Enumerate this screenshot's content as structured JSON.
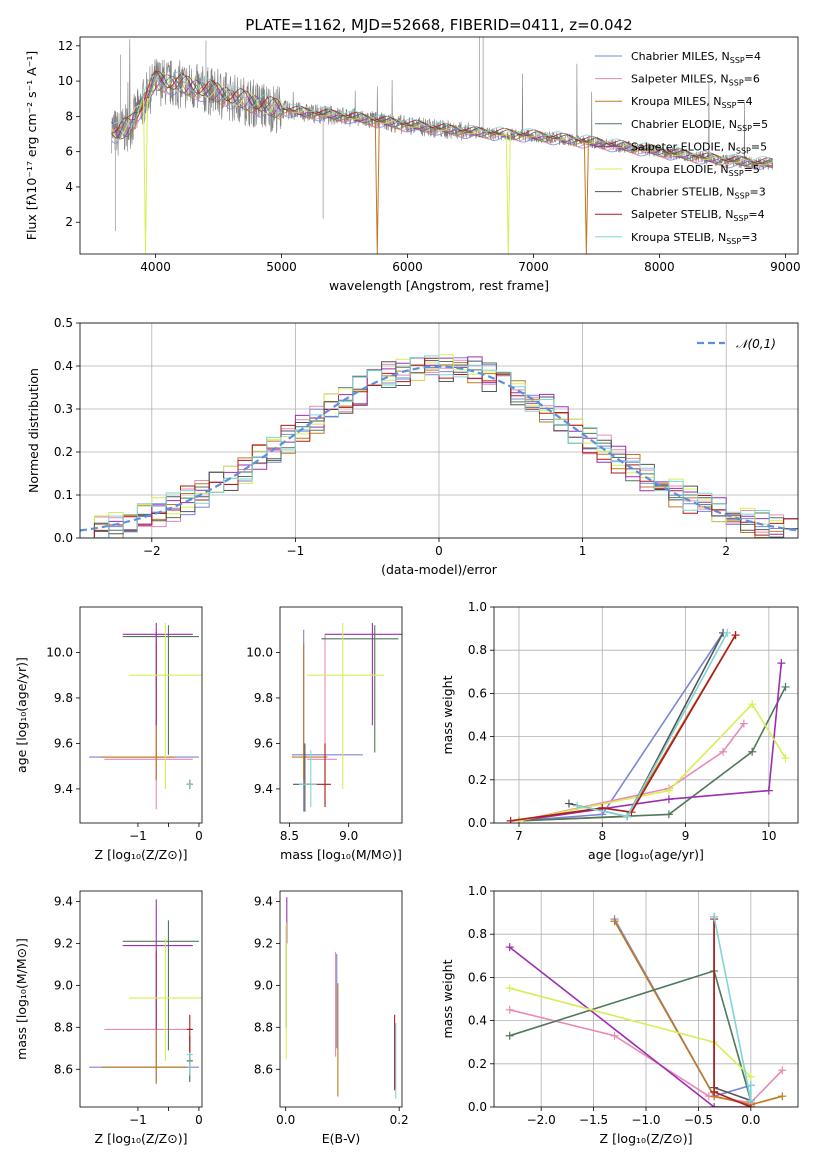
{
  "figure_title": "PLATE=1162, MJD=52668, FIBERID=0411, z=0.042",
  "colors": {
    "Chabrier MILES": "#7b86d6",
    "Salpeter MILES": "#e88ab6",
    "Kroupa MILES": "#c07a1f",
    "Chabrier ELODIE": "#4f7a5a",
    "Salpeter ELODIE": "#9b2fb0",
    "Kroupa ELODIE": "#d7ee55",
    "Chabrier STELIB": "#555555",
    "Salpeter STELIB": "#b01b1b",
    "Kroupa STELIB": "#7fd5d5",
    "data": "#808080"
  },
  "chart_data": [
    {
      "id": "spectrum",
      "type": "line",
      "title": "PLATE=1162, MJD=52668, FIBERID=0411, z=0.042",
      "xlabel": "wavelength [Angstrom, rest frame]",
      "ylabel": "Flux [fλ10⁻¹⁷ erg cm⁻² s⁻¹ A⁻¹]",
      "xlim": [
        3400,
        9100
      ],
      "ylim": [
        0.2,
        12.5
      ],
      "xticks": [
        4000,
        5000,
        6000,
        7000,
        8000,
        9000
      ],
      "yticks": [
        2,
        4,
        6,
        8,
        10,
        12
      ],
      "legend_position": "upper-right",
      "legend": [
        {
          "name": "Chabrier MILES",
          "nssp": "4"
        },
        {
          "name": "Salpeter MILES",
          "nssp": "6"
        },
        {
          "name": "Kroupa MILES",
          "nssp": "4"
        },
        {
          "name": "Chabrier ELODIE",
          "nssp": "5"
        },
        {
          "name": "Salpeter ELODIE",
          "nssp": "5"
        },
        {
          "name": "Kroupa ELODIE",
          "nssp": "5"
        },
        {
          "name": "Chabrier STELIB",
          "nssp": "3"
        },
        {
          "name": "Salpeter STELIB",
          "nssp": "4"
        },
        {
          "name": "Kroupa STELIB",
          "nssp": "3"
        }
      ],
      "continuum": {
        "x": [
          3650,
          3700,
          3800,
          3900,
          4000,
          4200,
          4500,
          4900,
          5200,
          5500,
          6000,
          6500,
          7000,
          7500,
          8000,
          8500,
          8900
        ],
        "y": [
          7.3,
          7.0,
          7.5,
          8.8,
          10.0,
          9.8,
          9.3,
          8.5,
          8.2,
          8.0,
          7.5,
          7.1,
          6.9,
          6.5,
          6.0,
          5.5,
          5.3
        ]
      },
      "model_dips": [
        {
          "x": 3920,
          "y": 0.2,
          "series": "Kroupa ELODIE"
        },
        {
          "x": 5760,
          "y": 0.2,
          "series": "Kroupa MILES"
        },
        {
          "x": 6800,
          "y": 0.2,
          "series": "Kroupa ELODIE"
        },
        {
          "x": 7420,
          "y": 0.2,
          "series": "Kroupa MILES"
        }
      ]
    },
    {
      "id": "residuals",
      "type": "line",
      "xlabel": "(data-model)/error",
      "ylabel": "Normed distribution",
      "xlim": [
        -2.5,
        2.5
      ],
      "ylim": [
        0,
        0.5
      ],
      "xticks": [
        -2,
        -1,
        0,
        1,
        2
      ],
      "yticks": [
        0.0,
        0.1,
        0.2,
        0.3,
        0.4,
        0.5
      ],
      "grid": true,
      "legend_position": "upper-right",
      "gaussian_label": "𝒩(0,1)",
      "gaussian": {
        "mean": 0,
        "sigma": 1
      },
      "bin_width": 0.1
    },
    {
      "id": "z-age",
      "type": "errorbar",
      "xlabel": "Z [log₁₀(Z/Z⊙)]",
      "ylabel": "age  [log₁₀(age/yr)]",
      "xlim": [
        -1.95,
        0.05
      ],
      "ylim": [
        9.25,
        10.2
      ],
      "xticks": [
        -1,
        -0.5,
        0
      ],
      "xticklabels": [
        "−1",
        "",
        "0"
      ],
      "yticks": [
        9.4,
        9.6,
        9.8,
        10.0
      ],
      "points": [
        {
          "series": "Chabrier MILES",
          "x": -0.7,
          "y": 9.54,
          "xerr": [
            1.1,
            0.7
          ],
          "yerr": [
            0.1,
            0.55
          ]
        },
        {
          "series": "Salpeter MILES",
          "x": -0.7,
          "y": 9.53,
          "xerr": [
            0.85,
            0.6
          ],
          "yerr": [
            0.22,
            0.55
          ]
        },
        {
          "series": "Kroupa MILES",
          "x": -0.7,
          "y": 9.54,
          "xerr": [
            0.9,
            0.3
          ],
          "yerr": [
            0.1,
            0.5
          ]
        },
        {
          "series": "Chabrier ELODIE",
          "x": -0.5,
          "y": 10.07,
          "xerr": [
            0.75,
            0.5
          ],
          "yerr": [
            0.52,
            0.05
          ]
        },
        {
          "series": "Salpeter ELODIE",
          "x": -0.7,
          "y": 10.08,
          "xerr": [
            0.55,
            0.6
          ],
          "yerr": [
            0.4,
            0.05
          ]
        },
        {
          "series": "Kroupa ELODIE",
          "x": -0.55,
          "y": 9.9,
          "xerr": [
            0.6,
            0.6
          ],
          "yerr": [
            0.5,
            0.23
          ]
        },
        {
          "series": "Chabrier STELIB",
          "x": -0.15,
          "y": 9.42,
          "xerr": [
            0.05,
            0.05
          ],
          "yerr": [
            0.02,
            0.02
          ]
        },
        {
          "series": "Salpeter STELIB",
          "x": -0.15,
          "y": 9.42,
          "xerr": [
            0.05,
            0.05
          ],
          "yerr": [
            0.02,
            0.02
          ]
        },
        {
          "series": "Kroupa STELIB",
          "x": -0.15,
          "y": 9.42,
          "xerr": [
            0.05,
            0.05
          ],
          "yerr": [
            0.02,
            0.02
          ]
        }
      ]
    },
    {
      "id": "mass-age",
      "type": "errorbar",
      "xlabel": "mass [log₁₀(M/M⊙)]",
      "ylabel": "",
      "xlim": [
        8.42,
        9.45
      ],
      "ylim": [
        9.25,
        10.2
      ],
      "xticks": [
        8.5,
        9.0
      ],
      "yticks": [
        9.4,
        9.6,
        9.8,
        10.0
      ],
      "points": [
        {
          "series": "Chabrier MILES",
          "x": 8.62,
          "y": 9.55,
          "xerr": [
            0.1,
            0.5
          ],
          "yerr": [
            0.25,
            0.55
          ]
        },
        {
          "series": "Salpeter MILES",
          "x": 8.8,
          "y": 9.53,
          "xerr": [
            0.15,
            0.1
          ],
          "yerr": [
            0.2,
            0.55
          ]
        },
        {
          "series": "Kroupa MILES",
          "x": 8.62,
          "y": 9.54,
          "xerr": [
            0.1,
            0.2
          ],
          "yerr": [
            0.1,
            0.5
          ]
        },
        {
          "series": "Chabrier ELODIE",
          "x": 9.22,
          "y": 10.06,
          "xerr": [
            0.45,
            0.2
          ],
          "yerr": [
            0.5,
            0.06
          ]
        },
        {
          "series": "Salpeter ELODIE",
          "x": 9.2,
          "y": 10.08,
          "xerr": [
            0.4,
            0.25
          ],
          "yerr": [
            0.4,
            0.05
          ]
        },
        {
          "series": "Kroupa ELODIE",
          "x": 8.95,
          "y": 9.9,
          "xerr": [
            0.3,
            0.35
          ],
          "yerr": [
            0.5,
            0.23
          ]
        },
        {
          "series": "Chabrier STELIB",
          "x": 8.63,
          "y": 9.42,
          "xerr": [
            0.1,
            0.05
          ],
          "yerr": [
            0.12,
            0.18
          ]
        },
        {
          "series": "Salpeter STELIB",
          "x": 8.8,
          "y": 9.42,
          "xerr": [
            0.15,
            0.05
          ],
          "yerr": [
            0.1,
            0.18
          ]
        },
        {
          "series": "Kroupa STELIB",
          "x": 8.68,
          "y": 9.42,
          "xerr": [
            0.1,
            0.05
          ],
          "yerr": [
            0.1,
            0.15
          ]
        }
      ]
    },
    {
      "id": "age-weight",
      "type": "line",
      "xlabel": "age  [log₁₀(age/yr)]",
      "ylabel": "mass weight",
      "xlim": [
        6.7,
        10.35
      ],
      "ylim": [
        0,
        1.0
      ],
      "xticks": [
        7,
        8,
        9,
        10
      ],
      "yticks": [
        0.0,
        0.2,
        0.4,
        0.6,
        0.8,
        1.0
      ],
      "grid": true,
      "series": [
        {
          "name": "Chabrier MILES",
          "x": [
            7.0,
            8.0,
            9.45
          ],
          "y": [
            0.01,
            0.04,
            0.88
          ]
        },
        {
          "name": "Salpeter MILES",
          "x": [
            7.0,
            8.8,
            9.45,
            9.7
          ],
          "y": [
            0.01,
            0.16,
            0.33,
            0.46
          ]
        },
        {
          "name": "Kroupa MILES",
          "x": [
            7.0,
            8.3,
            9.6
          ],
          "y": [
            0.01,
            0.03,
            0.87
          ]
        },
        {
          "name": "Chabrier ELODIE",
          "x": [
            7.0,
            8.8,
            9.8,
            10.2
          ],
          "y": [
            0.01,
            0.04,
            0.33,
            0.63
          ]
        },
        {
          "name": "Salpeter ELODIE",
          "x": [
            7.0,
            8.8,
            10.0,
            10.15
          ],
          "y": [
            0.01,
            0.11,
            0.15,
            0.74
          ]
        },
        {
          "name": "Kroupa ELODIE",
          "x": [
            7.0,
            8.8,
            9.8,
            10.2
          ],
          "y": [
            0.01,
            0.15,
            0.55,
            0.3
          ]
        },
        {
          "name": "Chabrier STELIB",
          "x": [
            7.6,
            8.3,
            9.45
          ],
          "y": [
            0.09,
            0.03,
            0.88
          ]
        },
        {
          "name": "Salpeter STELIB",
          "x": [
            6.9,
            8.0,
            8.35,
            9.6
          ],
          "y": [
            0.01,
            0.07,
            0.05,
            0.87
          ]
        },
        {
          "name": "Kroupa STELIB",
          "x": [
            7.7,
            8.3,
            9.5
          ],
          "y": [
            0.08,
            0.03,
            0.88
          ]
        }
      ]
    },
    {
      "id": "z-mass",
      "type": "errorbar",
      "xlabel": "Z [log₁₀(Z/Z⊙)]",
      "ylabel": "mass [log₁₀(M/M⊙)]",
      "xlim": [
        -1.95,
        0.05
      ],
      "ylim": [
        8.42,
        9.45
      ],
      "xticks": [
        -1,
        -0.5,
        0
      ],
      "xticklabels": [
        "−1",
        "",
        "0"
      ],
      "yticks": [
        8.6,
        8.8,
        9.0,
        9.2,
        9.4
      ],
      "points": [
        {
          "series": "Chabrier MILES",
          "x": -0.7,
          "y": 8.61,
          "xerr": [
            1.1,
            0.7
          ],
          "yerr": [
            0.07,
            0.55
          ]
        },
        {
          "series": "Salpeter MILES",
          "x": -0.7,
          "y": 8.79,
          "xerr": [
            0.85,
            0.6
          ],
          "yerr": [
            0.15,
            0.38
          ]
        },
        {
          "series": "Kroupa MILES",
          "x": -0.7,
          "y": 8.61,
          "xerr": [
            0.9,
            0.5
          ],
          "yerr": [
            0.08,
            0.55
          ]
        },
        {
          "series": "Chabrier ELODIE",
          "x": -0.5,
          "y": 9.21,
          "xerr": [
            0.75,
            0.5
          ],
          "yerr": [
            0.52,
            0.1
          ]
        },
        {
          "series": "Salpeter ELODIE",
          "x": -0.7,
          "y": 9.19,
          "xerr": [
            0.55,
            0.6
          ],
          "yerr": [
            0.4,
            0.22
          ]
        },
        {
          "series": "Kroupa ELODIE",
          "x": -0.55,
          "y": 8.94,
          "xerr": [
            0.6,
            0.6
          ],
          "yerr": [
            0.3,
            0.28
          ]
        },
        {
          "series": "Chabrier STELIB",
          "x": -0.15,
          "y": 8.64,
          "xerr": [
            0.05,
            0.05
          ],
          "yerr": [
            0.1,
            0.12
          ]
        },
        {
          "series": "Salpeter STELIB",
          "x": -0.15,
          "y": 8.79,
          "xerr": [
            0.05,
            0.05
          ],
          "yerr": [
            0.16,
            0.07
          ]
        },
        {
          "series": "Kroupa STELIB",
          "x": -0.15,
          "y": 8.67,
          "xerr": [
            0.05,
            0.05
          ],
          "yerr": [
            0.1,
            0.01
          ]
        }
      ]
    },
    {
      "id": "ebv-mass",
      "type": "errorbar",
      "xlabel": "E(B-V)",
      "ylabel": "",
      "xlim": [
        -0.01,
        0.205
      ],
      "ylim": [
        8.42,
        9.45
      ],
      "xticks": [
        0.0,
        0.2
      ],
      "yticks": [
        8.6,
        8.8,
        9.0,
        9.2,
        9.4
      ],
      "points": [
        {
          "series": "Chabrier MILES",
          "x": 0.09,
          "y": 8.9,
          "xerr": [
            0,
            0
          ],
          "yerr": [
            0.2,
            0.25
          ]
        },
        {
          "series": "Salpeter MILES",
          "x": 0.088,
          "y": 8.9,
          "xerr": [
            0,
            0
          ],
          "yerr": [
            0.24,
            0.26
          ]
        },
        {
          "series": "Kroupa MILES",
          "x": 0.092,
          "y": 8.75,
          "xerr": [
            0,
            0
          ],
          "yerr": [
            0.28,
            0.26
          ]
        },
        {
          "series": "Chabrier ELODIE",
          "x": 0.001,
          "y": 9.0,
          "xerr": [
            0,
            0
          ],
          "yerr": [
            0.2,
            0.28
          ]
        },
        {
          "series": "Salpeter ELODIE",
          "x": 0.002,
          "y": 9.3,
          "xerr": [
            0,
            0
          ],
          "yerr": [
            0.1,
            0.12
          ]
        },
        {
          "series": "Kroupa ELODIE",
          "x": 0.001,
          "y": 9.0,
          "xerr": [
            0,
            0
          ],
          "yerr": [
            0.35,
            0.3
          ]
        },
        {
          "series": "Chabrier STELIB",
          "x": 0.193,
          "y": 8.66,
          "xerr": [
            0,
            0
          ],
          "yerr": [
            0.15,
            0.16
          ]
        },
        {
          "series": "Salpeter STELIB",
          "x": 0.192,
          "y": 8.7,
          "xerr": [
            0,
            0
          ],
          "yerr": [
            0.2,
            0.16
          ]
        },
        {
          "series": "Kroupa STELIB",
          "x": 0.194,
          "y": 8.66,
          "xerr": [
            0,
            0
          ],
          "yerr": [
            0.2,
            0.16
          ]
        }
      ]
    },
    {
      "id": "z-weight",
      "type": "line",
      "xlabel": "Z [log₁₀(Z/Z⊙)]",
      "ylabel": "mass weight",
      "xlim": [
        -2.45,
        0.45
      ],
      "ylim": [
        0,
        1.0
      ],
      "xticks": [
        -2.0,
        -1.5,
        -1.0,
        -0.5,
        0.0
      ],
      "yticks": [
        0.0,
        0.2,
        0.4,
        0.6,
        0.8,
        1.0
      ],
      "grid": true,
      "series": [
        {
          "name": "Chabrier MILES",
          "x": [
            -1.3,
            -0.35,
            0.0
          ],
          "y": [
            0.87,
            0.05,
            0.1
          ]
        },
        {
          "name": "Salpeter MILES",
          "x": [
            -2.3,
            -1.3,
            -0.4,
            0.0,
            0.3
          ],
          "y": [
            0.45,
            0.33,
            0.05,
            0.02,
            0.17
          ]
        },
        {
          "name": "Kroupa MILES",
          "x": [
            -1.3,
            -0.35,
            0.0,
            0.3
          ],
          "y": [
            0.86,
            0.05,
            0.01,
            0.05
          ]
        },
        {
          "name": "Chabrier ELODIE",
          "x": [
            -2.3,
            -0.35,
            0.0
          ],
          "y": [
            0.33,
            0.63,
            0.03
          ]
        },
        {
          "name": "Salpeter ELODIE",
          "x": [
            -2.3,
            -0.35,
            0.0
          ],
          "y": [
            0.74,
            0.0,
            0.0
          ]
        },
        {
          "name": "Kroupa ELODIE",
          "x": [
            -2.3,
            -0.35,
            0.0
          ],
          "y": [
            0.55,
            0.3,
            0.14
          ]
        },
        {
          "name": "Chabrier STELIB",
          "x": [
            -0.35,
            -0.35,
            0.0
          ],
          "y": [
            0.88,
            0.09,
            0.03
          ]
        },
        {
          "name": "Salpeter STELIB",
          "x": [
            -0.35,
            -0.35,
            0.0
          ],
          "y": [
            0.87,
            0.07,
            0.0
          ]
        },
        {
          "name": "Kroupa STELIB",
          "x": [
            -0.35,
            0.0,
            0.0
          ],
          "y": [
            0.88,
            0.03,
            0.1
          ]
        }
      ]
    }
  ]
}
